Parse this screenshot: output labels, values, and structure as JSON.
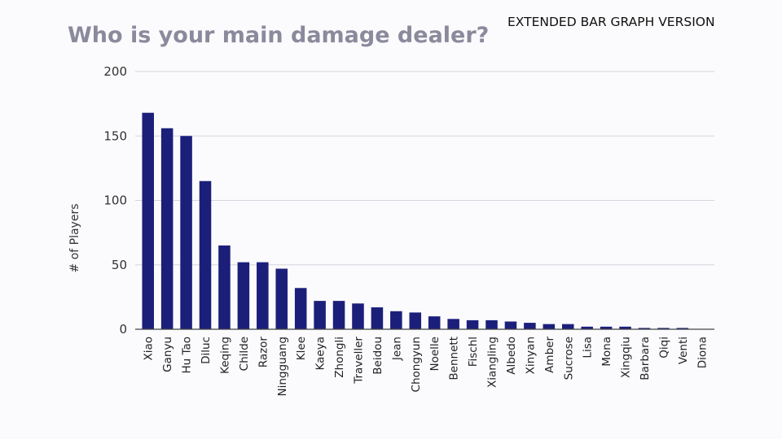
{
  "header": {
    "title": "Who is your main damage dealer?",
    "version_tag": "EXTENDED BAR GRAPH VERSION"
  },
  "colors": {
    "bar": "#1b1f7a",
    "grid": "#d4d4de",
    "axis": "#444444"
  },
  "chart_data": {
    "type": "bar",
    "title": "Who is your main damage dealer?",
    "xlabel": "",
    "ylabel": "# of Players",
    "ylim": [
      0,
      200
    ],
    "yticks": [
      0,
      50,
      100,
      150,
      200
    ],
    "grid": true,
    "categories": [
      "Xiao",
      "Ganyu",
      "Hu Tao",
      "Diluc",
      "Keqing",
      "Childe",
      "Razor",
      "Ningguang",
      "Klee",
      "Kaeya",
      "Zhongli",
      "Traveller",
      "Beidou",
      "Jean",
      "Chongyun",
      "Noelle",
      "Bennett",
      "Fischl",
      "Xiangling",
      "Albedo",
      "Xinyan",
      "Amber",
      "Sucrose",
      "Lisa",
      "Mona",
      "Xingqiu",
      "Barbara",
      "Qiqi",
      "Venti",
      "Diona"
    ],
    "values": [
      168,
      156,
      150,
      115,
      65,
      52,
      52,
      47,
      32,
      22,
      22,
      20,
      17,
      14,
      13,
      10,
      8,
      7,
      7,
      6,
      5,
      4,
      4,
      2,
      2,
      2,
      1,
      1,
      1,
      0
    ]
  }
}
